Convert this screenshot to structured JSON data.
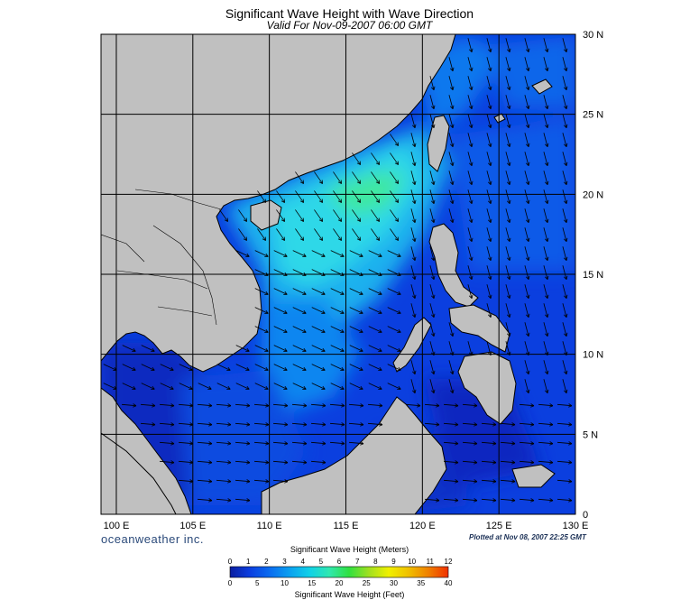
{
  "header": {
    "title": "Significant Wave Height with Wave Direction",
    "subtitle": "Valid For Nov-09-2007 06:00 GMT"
  },
  "map": {
    "lon_range": [
      99,
      130
    ],
    "lat_range": [
      0,
      30
    ],
    "lon_labels": [
      "100 E",
      "105 E",
      "110 E",
      "115 E",
      "120 E",
      "125 E",
      "130 E"
    ],
    "lat_labels": [
      "30 N",
      "25 N",
      "20 N",
      "15 N",
      "10 N",
      "5 N",
      "0"
    ],
    "land_color": "#c0c0c0",
    "border_color": "#000000",
    "arrow_color": "#000000",
    "dominant_wave_direction": "from northeast"
  },
  "footer": {
    "brand": "oceanweather inc.",
    "plotted": "Plotted at Nov 08, 2007 22:25 GMT"
  },
  "legend": {
    "title_meters": "Significant Wave Height (Meters)",
    "title_feet": "Significant Wave Height (Feet)",
    "meter_ticks": [
      "0",
      "1",
      "2",
      "3",
      "4",
      "5",
      "6",
      "7",
      "8",
      "9",
      "10",
      "11",
      "12"
    ],
    "feet_ticks": [
      "0",
      "5",
      "10",
      "15",
      "20",
      "25",
      "30",
      "35",
      "40"
    ],
    "colors": [
      "#0a1ea0",
      "#0b3ee0",
      "#0a6cf0",
      "#0aa0f0",
      "#10d0e8",
      "#30e8b0",
      "#30e040",
      "#a0e020",
      "#f0f000",
      "#f0c000",
      "#f08000",
      "#f03000"
    ]
  }
}
